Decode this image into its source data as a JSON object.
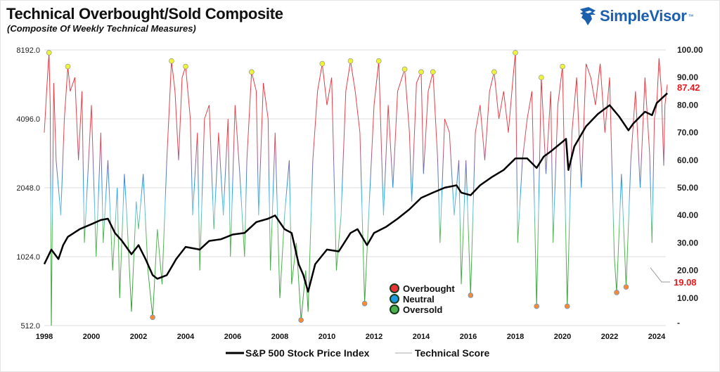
{
  "title": "Technical Overbought/Sold Composite",
  "subtitle": "(Composite Of Weekly Technical Measures)",
  "logo": {
    "text": "SimpleVisor",
    "tm": "™",
    "icon": "eagle-head-icon",
    "color": "#1b5fae"
  },
  "chart_data": {
    "type": "line",
    "title": "Technical Overbought/Sold Composite",
    "subtitle": "(Composite Of Weekly Technical Measures)",
    "x_ticks": [
      "1998",
      "2000",
      "2002",
      "2004",
      "2006",
      "2008",
      "2010",
      "2012",
      "2014",
      "2016",
      "2018",
      "2020",
      "2022",
      "2024"
    ],
    "xlim": [
      1998,
      2024.5
    ],
    "left_axis": {
      "scale": "log2",
      "ylim": [
        512,
        8192
      ],
      "ticks": [
        "512.0",
        "1024.0",
        "2048.0",
        "4096.0",
        "8192.0"
      ]
    },
    "right_axis": {
      "ylim": [
        0,
        100
      ],
      "ticks": [
        "-",
        "10.00",
        "20.00",
        "30.00",
        "40.00",
        "50.00",
        "60.00",
        "70.00",
        "80.00",
        "90.00",
        "100.00"
      ]
    },
    "grid": true,
    "series": [
      {
        "name": "S&P 500 Stock Price Index",
        "axis": "left",
        "color": "#000000",
        "x": [
          1998.0,
          1998.3,
          1998.6,
          1998.8,
          1999.0,
          1999.5,
          2000.0,
          2000.4,
          2000.7,
          2001.0,
          2001.3,
          2001.7,
          2002.0,
          2002.3,
          2002.6,
          2002.8,
          2003.2,
          2003.6,
          2004.0,
          2004.6,
          2005.0,
          2005.5,
          2006.0,
          2006.5,
          2007.0,
          2007.5,
          2007.8,
          2008.2,
          2008.5,
          2008.8,
          2009.0,
          2009.2,
          2009.5,
          2010.0,
          2010.5,
          2011.0,
          2011.3,
          2011.7,
          2012.0,
          2012.5,
          2013.0,
          2013.5,
          2014.0,
          2014.5,
          2015.0,
          2015.5,
          2015.7,
          2016.1,
          2016.5,
          2017.0,
          2017.5,
          2018.0,
          2018.5,
          2018.9,
          2019.2,
          2019.5,
          2020.0,
          2020.15,
          2020.25,
          2020.5,
          2021.0,
          2021.5,
          2022.0,
          2022.4,
          2022.8,
          2023.0,
          2023.5,
          2023.8,
          2024.0,
          2024.45
        ],
        "values": [
          950,
          1100,
          1000,
          1150,
          1250,
          1350,
          1420,
          1480,
          1500,
          1300,
          1200,
          1050,
          1150,
          1000,
          850,
          820,
          850,
          1000,
          1130,
          1100,
          1200,
          1220,
          1280,
          1300,
          1450,
          1500,
          1550,
          1350,
          1300,
          950,
          850,
          720,
          950,
          1100,
          1080,
          1300,
          1350,
          1150,
          1300,
          1380,
          1500,
          1650,
          1850,
          1950,
          2050,
          2100,
          1950,
          1900,
          2100,
          2280,
          2450,
          2750,
          2750,
          2500,
          2800,
          2950,
          3250,
          3350,
          2450,
          3100,
          3800,
          4300,
          4700,
          4200,
          3650,
          3900,
          4400,
          4250,
          4800,
          5300
        ]
      },
      {
        "name": "Technical Score",
        "axis": "right",
        "last_value": "87.42",
        "x": [
          1998.0,
          1998.1,
          1998.2,
          1998.25,
          1998.3,
          1998.4,
          1998.5,
          1998.7,
          1998.85,
          1999.0,
          1999.1,
          1999.3,
          1999.45,
          1999.6,
          1999.7,
          1999.85,
          2000.0,
          2000.2,
          2000.4,
          2000.5,
          2000.7,
          2000.9,
          2001.1,
          2001.2,
          2001.4,
          2001.5,
          2001.7,
          2001.9,
          2002.0,
          2002.2,
          2002.4,
          2002.6,
          2002.8,
          2003.0,
          2003.2,
          2003.4,
          2003.55,
          2003.7,
          2003.85,
          2004.0,
          2004.2,
          2004.3,
          2004.5,
          2004.6,
          2004.8,
          2005.0,
          2005.2,
          2005.4,
          2005.6,
          2005.8,
          2005.9,
          2006.1,
          2006.3,
          2006.5,
          2006.6,
          2006.8,
          2007.0,
          2007.1,
          2007.3,
          2007.5,
          2007.6,
          2007.8,
          2008.0,
          2008.2,
          2008.4,
          2008.5,
          2008.7,
          2008.9,
          2009.1,
          2009.2,
          2009.4,
          2009.6,
          2009.8,
          2010.0,
          2010.2,
          2010.4,
          2010.6,
          2010.8,
          2011.0,
          2011.2,
          2011.4,
          2011.6,
          2011.8,
          2012.0,
          2012.2,
          2012.4,
          2012.6,
          2012.8,
          2013.0,
          2013.3,
          2013.5,
          2013.6,
          2013.8,
          2014.0,
          2014.1,
          2014.3,
          2014.5,
          2014.7,
          2014.8,
          2015.0,
          2015.2,
          2015.4,
          2015.6,
          2015.7,
          2015.9,
          2016.1,
          2016.3,
          2016.5,
          2016.7,
          2016.9,
          2017.1,
          2017.3,
          2017.5,
          2017.7,
          2017.9,
          2018.0,
          2018.1,
          2018.3,
          2018.5,
          2018.7,
          2018.9,
          2019.1,
          2019.3,
          2019.5,
          2019.6,
          2019.8,
          2020.0,
          2020.2,
          2020.4,
          2020.6,
          2020.8,
          2021.0,
          2021.2,
          2021.4,
          2021.6,
          2021.8,
          2022.0,
          2022.2,
          2022.3,
          2022.5,
          2022.7,
          2022.9,
          2023.1,
          2023.3,
          2023.5,
          2023.7,
          2023.8,
          2023.9,
          2024.0,
          2024.1,
          2024.2,
          2024.3,
          2024.35,
          2024.45
        ],
        "values": [
          70,
          85,
          99,
          80,
          0,
          88,
          60,
          40,
          75,
          94,
          85,
          90,
          60,
          85,
          30,
          55,
          80,
          25,
          70,
          30,
          60,
          20,
          50,
          10,
          55,
          40,
          5,
          45,
          35,
          55,
          20,
          3,
          35,
          15,
          60,
          96,
          85,
          60,
          90,
          94,
          75,
          40,
          70,
          20,
          75,
          80,
          35,
          70,
          40,
          75,
          25,
          80,
          55,
          25,
          60,
          92,
          85,
          40,
          88,
          75,
          20,
          70,
          10,
          40,
          60,
          15,
          30,
          2,
          20,
          5,
          60,
          85,
          95,
          80,
          90,
          20,
          40,
          85,
          96,
          85,
          70,
          8,
          45,
          80,
          96,
          40,
          80,
          50,
          85,
          93,
          70,
          45,
          88,
          92,
          55,
          85,
          92,
          60,
          30,
          75,
          70,
          40,
          60,
          15,
          60,
          11,
          70,
          80,
          60,
          85,
          92,
          75,
          85,
          70,
          90,
          99,
          30,
          60,
          75,
          85,
          7,
          90,
          55,
          85,
          30,
          80,
          94,
          7,
          70,
          90,
          50,
          95,
          90,
          80,
          95,
          70,
          90,
          25,
          12,
          55,
          14,
          60,
          85,
          50,
          90,
          62,
          30,
          75,
          80,
          97,
          85,
          58,
          80,
          87.42
        ]
      },
      {
        "name": "Overbought",
        "marker_color": "#eef23a",
        "x": [
          1998.2,
          1999.0,
          2003.4,
          2004.0,
          2006.8,
          2009.8,
          2011.0,
          2012.2,
          2013.3,
          2014.0,
          2014.5,
          2017.1,
          2018.0,
          2019.1,
          2020.0
        ],
        "values": [
          99,
          94,
          96,
          94,
          92,
          95,
          96,
          96,
          93,
          92,
          92,
          92,
          99,
          90,
          94
        ]
      },
      {
        "name": "Oversold",
        "marker_color": "#f28c3a",
        "x": [
          2002.6,
          2008.9,
          2011.6,
          2016.1,
          2018.9,
          2020.2,
          2022.3,
          2022.7
        ],
        "values": [
          3,
          2,
          8,
          11,
          7,
          7,
          12,
          14
        ]
      }
    ],
    "end_labels": [
      "87.42",
      "19.08"
    ],
    "legend": {
      "placement": "center-bottom",
      "items": [
        {
          "label": "Overbought",
          "color": "#e8323a"
        },
        {
          "label": "Neutral",
          "color": "#1e9be0"
        },
        {
          "label": "Oversold",
          "color": "#4caf50"
        }
      ]
    },
    "bottom_legend": {
      "placement": "bottom",
      "items": [
        {
          "label": "S&P 500 Stock Price Index",
          "color": "#000000"
        },
        {
          "label": "Technical Score",
          "color": "#aaaaaa"
        }
      ]
    },
    "colors": {
      "overbought": "#e8323a",
      "neutral": "#1e9be0",
      "oversold": "#4caf50"
    }
  }
}
